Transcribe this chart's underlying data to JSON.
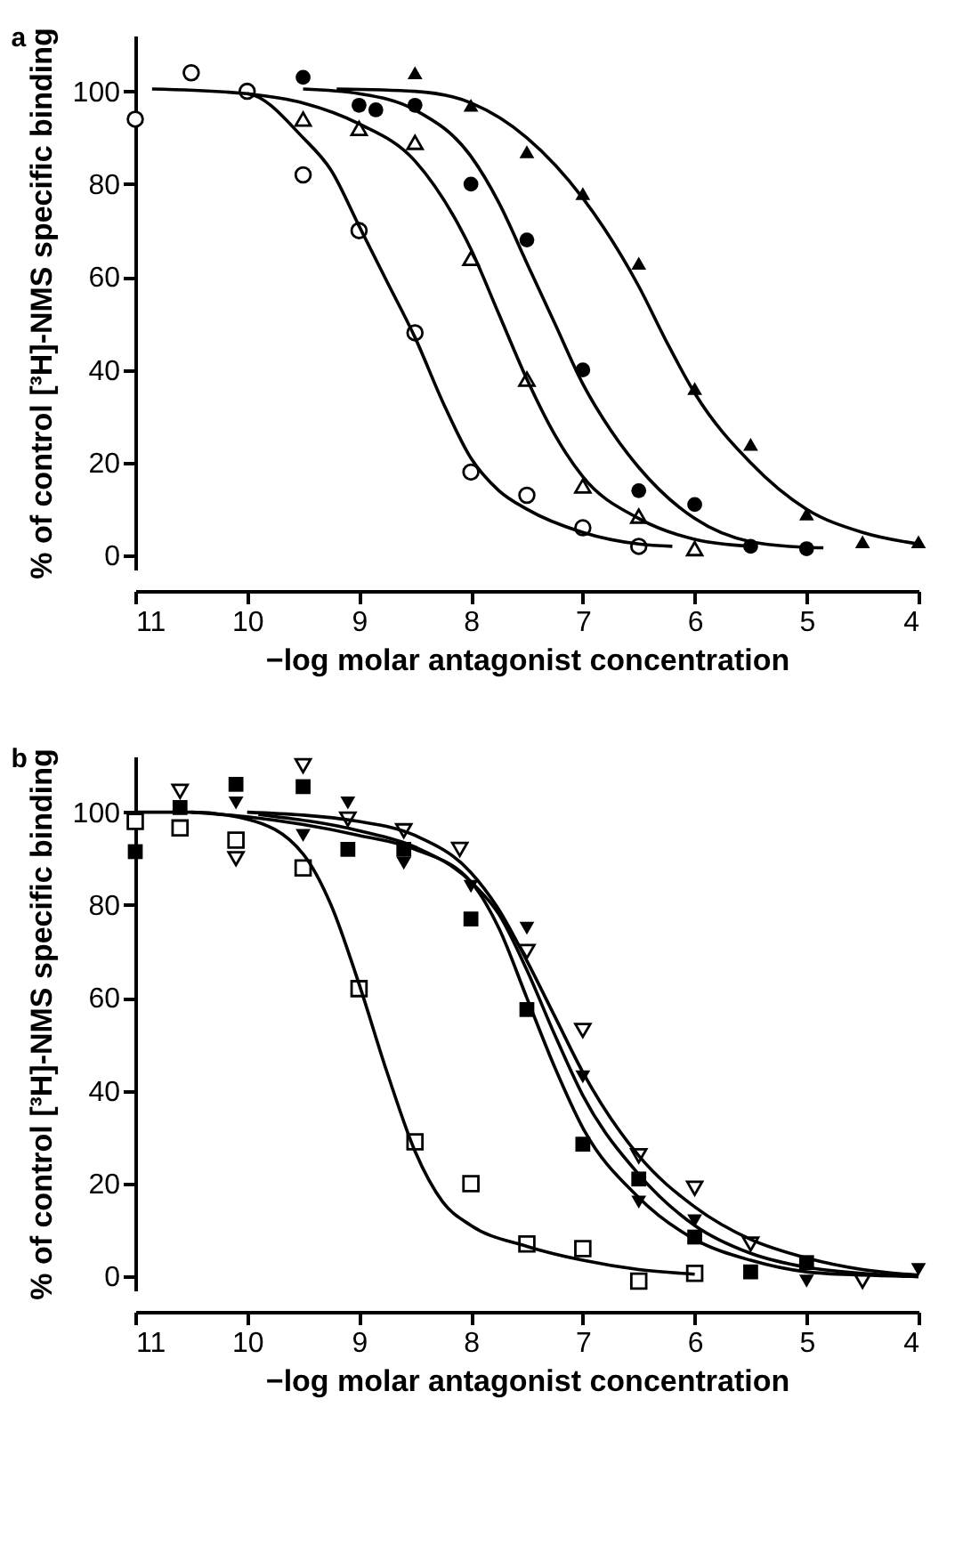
{
  "chart_data": [
    {
      "type": "scatter",
      "title": "a",
      "xlabel": "−log molar antagonist concentration",
      "ylabel": "% of control [³H]-NMS specific binding",
      "xlim": [
        11,
        4
      ],
      "xticks": [
        11,
        10,
        9,
        8,
        7,
        6,
        5,
        4
      ],
      "ylim": [
        -3,
        112
      ],
      "yticks": [
        0,
        20,
        40,
        60,
        80,
        100
      ],
      "series": [
        {
          "type": "scatter",
          "color": "#000000",
          "marker": "circle-open",
          "x": [
            11,
            10.5,
            10,
            9.5,
            9,
            8.5,
            8,
            7.5,
            7,
            6.5
          ],
          "values": [
            94,
            104,
            100,
            82,
            70,
            48,
            18,
            13,
            6,
            2
          ]
        },
        {
          "type": "scatter",
          "color": "#000000",
          "marker": "triangle-open",
          "x": [
            9.5,
            9,
            8.5,
            8,
            7.5,
            7,
            6.5,
            6
          ],
          "values": [
            94,
            92,
            89,
            64,
            38,
            15,
            8.5,
            1.5
          ]
        },
        {
          "type": "scatter",
          "color": "#000000",
          "marker": "circle",
          "x": [
            9.5,
            9,
            8.85,
            8.5,
            8,
            7.5,
            7,
            6.5,
            6,
            5.5,
            5
          ],
          "values": [
            103,
            97,
            96,
            97,
            80,
            68,
            40,
            14,
            11,
            2,
            1.5
          ]
        },
        {
          "type": "scatter",
          "color": "#000000",
          "marker": "triangle",
          "x": [
            8.5,
            8,
            7.5,
            7,
            6.5,
            6,
            5.5,
            5,
            4.5,
            4
          ],
          "values": [
            104,
            97,
            87,
            78,
            63,
            36,
            24,
            9,
            3,
            3
          ]
        },
        {
          "type": "line",
          "color": "#000000",
          "x": [
            10.85,
            10,
            9.5,
            9.25,
            9,
            8.75,
            8.5,
            8.25,
            8,
            7.75,
            7.5,
            7,
            6.5,
            6.2
          ],
          "values": [
            100.5,
            99.5,
            90,
            83,
            71,
            59,
            47,
            33,
            21,
            14,
            10,
            5,
            2.5,
            2
          ]
        },
        {
          "type": "line",
          "color": "#000000",
          "x": [
            10,
            9.5,
            9,
            8.5,
            8,
            7.75,
            7.5,
            7.25,
            7,
            6.5,
            6,
            5.5
          ],
          "values": [
            99.5,
            97.5,
            93,
            85,
            66,
            52,
            38,
            26,
            17,
            8,
            3.5,
            2
          ]
        },
        {
          "type": "line",
          "color": "#000000",
          "x": [
            9.5,
            9,
            8.5,
            8,
            7.75,
            7.5,
            7.25,
            7,
            6.75,
            6.5,
            6,
            5.5,
            5,
            4.85
          ],
          "values": [
            100.5,
            99.5,
            96,
            86,
            76,
            63,
            50,
            37,
            27,
            19,
            8,
            3,
            1.8,
            1.7
          ]
        },
        {
          "type": "line",
          "color": "#000000",
          "x": [
            9.2,
            8.5,
            8,
            7.5,
            7,
            6.5,
            6.25,
            6,
            5.5,
            5,
            4.5,
            4
          ],
          "values": [
            100.5,
            100,
            97.5,
            90,
            77,
            58,
            46,
            35,
            20,
            10,
            5,
            2.5
          ]
        }
      ]
    },
    {
      "type": "scatter",
      "title": "b",
      "xlabel": "−log molar antagonist concentration",
      "ylabel": "% of control [³H]-NMS specific binding",
      "xlim": [
        11,
        4
      ],
      "xticks": [
        11,
        10,
        9,
        8,
        7,
        6,
        5,
        4
      ],
      "ylim": [
        -3,
        112
      ],
      "yticks": [
        0,
        20,
        40,
        60,
        80,
        100
      ],
      "series": [
        {
          "type": "scatter",
          "color": "#000000",
          "marker": "square-open",
          "x": [
            11,
            10.6,
            10.1,
            9.5,
            9,
            8.5,
            8,
            7.5,
            7,
            6.5,
            6
          ],
          "values": [
            98,
            96.6,
            94,
            88,
            62,
            29,
            20,
            7,
            6,
            -1,
            0.7
          ]
        },
        {
          "type": "scatter",
          "color": "#000000",
          "marker": "square",
          "x": [
            11,
            10.6,
            10.1,
            9.5,
            9.1,
            8.6,
            8,
            7.5,
            7,
            6.5,
            6,
            5.5,
            5
          ],
          "values": [
            91.5,
            101,
            106,
            105.5,
            92,
            92,
            77,
            57.5,
            28.5,
            21,
            8.5,
            1,
            3
          ]
        },
        {
          "type": "scatter",
          "color": "#000000",
          "marker": "triangle-down",
          "x": [
            10.1,
            9.5,
            9.1,
            8.6,
            8,
            7.5,
            7,
            6.5,
            6,
            5,
            4
          ],
          "values": [
            102,
            95,
            102,
            89,
            84,
            75,
            43,
            16,
            12,
            -1,
            1.5
          ]
        },
        {
          "type": "scatter",
          "color": "#000000",
          "marker": "triangle-down-open",
          "x": [
            10.6,
            10.1,
            9.5,
            9.1,
            8.6,
            8.1,
            7.5,
            7,
            6.5,
            6,
            5.5,
            4.5
          ],
          "values": [
            104.5,
            90,
            110,
            98.5,
            96,
            92,
            70,
            53,
            26,
            19,
            7,
            -1
          ]
        },
        {
          "type": "line",
          "color": "#000000",
          "x": [
            11,
            10.5,
            10,
            9.5,
            9.25,
            9,
            8.75,
            8.5,
            8.25,
            8,
            7.5,
            7,
            6.5,
            6
          ],
          "values": [
            100,
            100,
            98.5,
            91,
            80,
            63,
            44,
            27,
            16,
            11,
            6.5,
            3.5,
            1.5,
            0.5
          ]
        },
        {
          "type": "line",
          "color": "#000000",
          "x": [
            10.5,
            10,
            9,
            8.5,
            8,
            7.75,
            7.5,
            7.25,
            7,
            6.5,
            6,
            5.5,
            5,
            4.5,
            4
          ],
          "values": [
            100,
            99,
            95,
            92,
            85,
            75,
            60,
            45,
            32,
            17,
            8,
            3.5,
            1,
            0.3,
            0
          ]
        },
        {
          "type": "line",
          "color": "#000000",
          "x": [
            9.9,
            9,
            8.5,
            8,
            7.75,
            7.5,
            7.25,
            7,
            6.5,
            6,
            5.5,
            5,
            4.5,
            4
          ],
          "values": [
            99.5,
            96,
            92.5,
            85,
            78,
            66,
            52,
            39,
            22,
            11,
            5,
            2,
            0.7,
            0
          ]
        },
        {
          "type": "line",
          "color": "#000000",
          "x": [
            10,
            9,
            8.5,
            8,
            7.75,
            7.5,
            7.25,
            7,
            6.5,
            6,
            5.5,
            5,
            4.5,
            4
          ],
          "values": [
            100,
            98,
            95,
            87,
            79,
            68,
            56,
            44,
            26,
            15,
            8,
            4,
            1.5,
            0.3
          ]
        }
      ]
    }
  ]
}
